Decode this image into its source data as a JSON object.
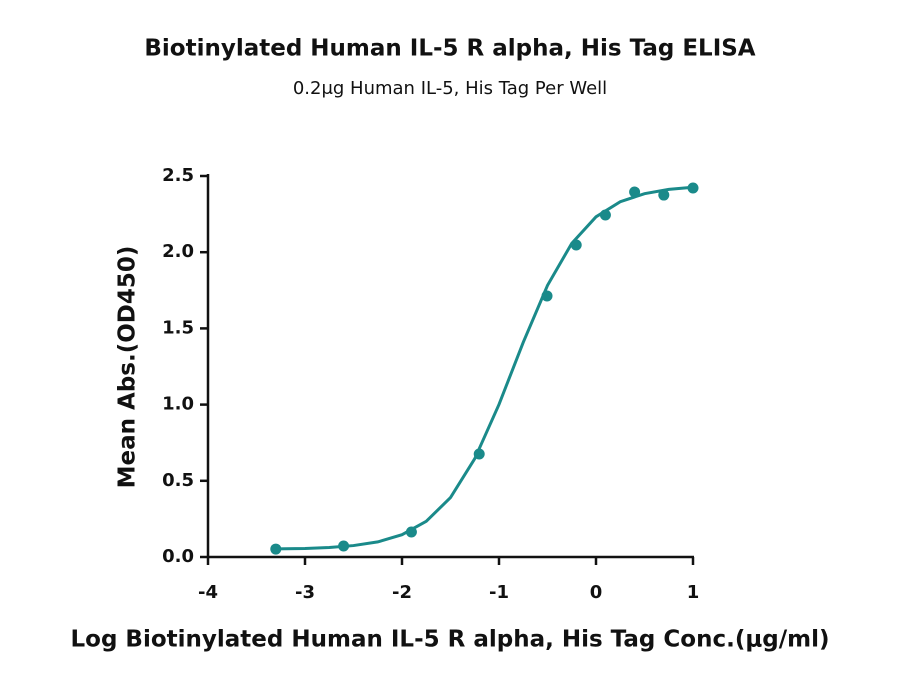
{
  "chart_data": {
    "type": "scatter",
    "title": "Biotinylated Human IL-5 R alpha, His Tag ELISA",
    "subtitle": "0.2μg Human IL-5, His Tag Per Well",
    "x_label": "Log Biotinylated Human IL-5 R alpha, His Tag Conc.(μg/ml)",
    "y_label": "Mean Abs.(OD450)",
    "xlim": [
      -4,
      1
    ],
    "xticks": [
      -4,
      -3,
      -2,
      -1,
      0,
      1
    ],
    "ylim": [
      0,
      2.5
    ],
    "yticks": [
      {
        "value": 0,
        "label": "0.0"
      },
      0.5,
      {
        "value": 1,
        "label": "1.0"
      },
      1.5,
      {
        "value": 2,
        "label": "2.0"
      },
      2.5
    ],
    "series": [
      {
        "style": "markers",
        "color": "#1a8a8a",
        "x": [
          -3.301,
          -2.602,
          -1.903,
          -1.204,
          -0.505,
          -0.204,
          0.097,
          0.398,
          0.699,
          1
        ],
        "values": [
          0.052,
          0.072,
          0.164,
          0.676,
          1.713,
          2.047,
          2.244,
          2.395,
          2.375,
          2.421
        ]
      },
      {
        "style": "line",
        "color": "#1a8a8a",
        "x": [
          -3.3,
          -3,
          -2.75,
          -2.5,
          -2.25,
          -2,
          -1.75,
          -1.5,
          -1.25,
          -1,
          -0.75,
          -0.5,
          -0.25,
          0,
          0.25,
          0.5,
          0.75,
          1
        ],
        "values": [
          0.053,
          0.056,
          0.0625,
          0.075,
          0.099,
          0.146,
          0.234,
          0.39,
          0.645,
          1.001,
          1.409,
          1.782,
          2.058,
          2.232,
          2.331,
          2.384,
          2.412,
          2.426
        ]
      }
    ]
  }
}
